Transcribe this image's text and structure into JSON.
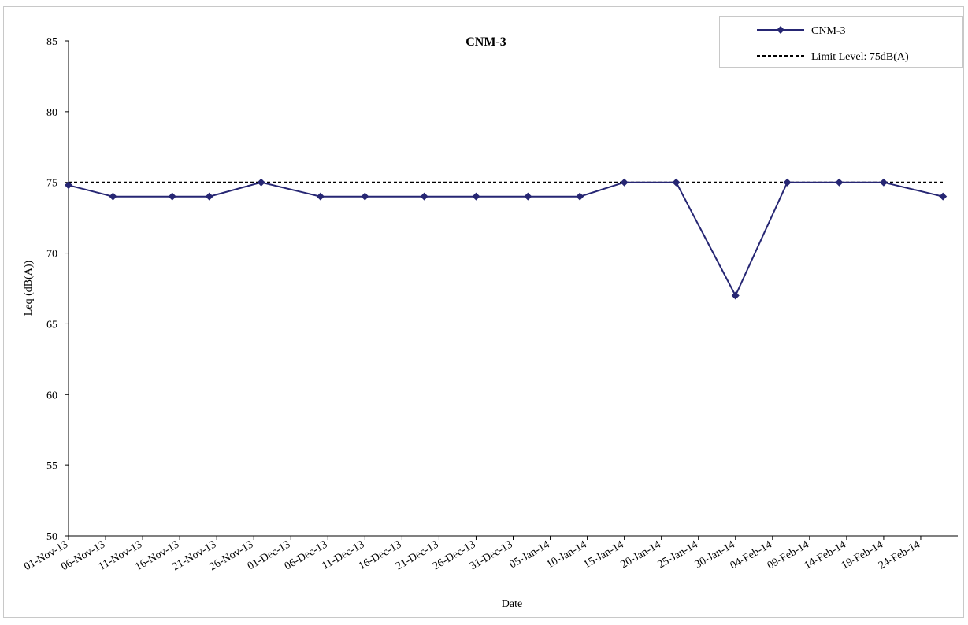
{
  "chart_data": {
    "type": "line",
    "title": "CNM-3",
    "xlabel": "Date",
    "ylabel": "Leq (dB(A))",
    "ylim": [
      50,
      85
    ],
    "yticks": [
      50,
      55,
      60,
      65,
      70,
      75,
      80,
      85
    ],
    "xlim": [
      "2013-11-01",
      "2014-03-01"
    ],
    "x_tick_labels": [
      "01-Nov-13",
      "06-Nov-13",
      "11-Nov-13",
      "16-Nov-13",
      "21-Nov-13",
      "26-Nov-13",
      "01-Dec-13",
      "06-Dec-13",
      "11-Dec-13",
      "16-Dec-13",
      "21-Dec-13",
      "26-Dec-13",
      "31-Dec-13",
      "05-Jan-14",
      "10-Jan-14",
      "15-Jan-14",
      "20-Jan-14",
      "25-Jan-14",
      "30-Jan-14",
      "04-Feb-14",
      "09-Feb-14",
      "14-Feb-14",
      "19-Feb-14",
      "24-Feb-14"
    ],
    "x_tick_dates": [
      "2013-11-01",
      "2013-11-06",
      "2013-11-11",
      "2013-11-16",
      "2013-11-21",
      "2013-11-26",
      "2013-12-01",
      "2013-12-06",
      "2013-12-11",
      "2013-12-16",
      "2013-12-21",
      "2013-12-26",
      "2013-12-31",
      "2014-01-05",
      "2014-01-10",
      "2014-01-15",
      "2014-01-20",
      "2014-01-25",
      "2014-01-30",
      "2014-02-04",
      "2014-02-09",
      "2014-02-14",
      "2014-02-19",
      "2014-02-24"
    ],
    "grid": false,
    "legend_position": "top-right",
    "series": [
      {
        "name": "CNM-3",
        "color": "#262673",
        "marker": "diamond",
        "x": [
          "2013-11-01",
          "2013-11-07",
          "2013-11-15",
          "2013-11-20",
          "2013-11-27",
          "2013-12-05",
          "2013-12-11",
          "2013-12-19",
          "2013-12-26",
          "2014-01-02",
          "2014-01-09",
          "2014-01-15",
          "2014-01-22",
          "2014-01-30",
          "2014-02-06",
          "2014-02-13",
          "2014-02-19",
          "2014-02-27"
        ],
        "values": [
          74.8,
          74,
          74,
          74,
          75,
          74,
          74,
          74,
          74,
          74,
          74,
          75,
          75,
          67,
          75,
          75,
          75,
          74
        ]
      },
      {
        "name": "Limit Level: 75dB(A)",
        "color": "#000000",
        "dashed": true,
        "x": [
          "2013-11-01",
          "2014-02-27"
        ],
        "values": [
          75,
          75
        ]
      }
    ]
  }
}
